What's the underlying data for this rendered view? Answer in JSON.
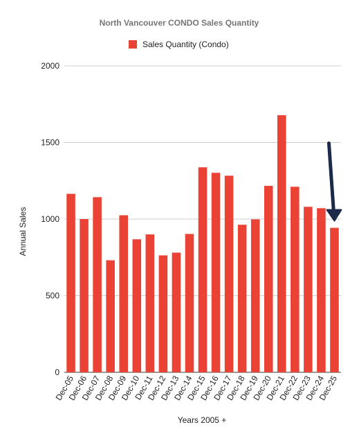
{
  "chart_data": {
    "type": "bar",
    "title": "North Vancouver CONDO Sales Quantity",
    "xlabel": "Years 2005 +",
    "ylabel": "Annual Sales",
    "categories": [
      "Dec-05",
      "Dec-06",
      "Dec-07",
      "Dec-08",
      "Dec-09",
      "Dec-10",
      "Dec-11",
      "Dec-12",
      "Dec-13",
      "Dec-14",
      "Dec-15",
      "Dec-16",
      "Dec-17",
      "Dec-18",
      "Dec-19",
      "Dec-20",
      "Dec-21",
      "Dec-22",
      "Dec-23",
      "Dec-24",
      "Dec-25"
    ],
    "series": [
      {
        "name": "Sales Quantity (Condo)",
        "color": "#ea4335",
        "values": [
          1165,
          1000,
          1143,
          731,
          1025,
          868,
          900,
          763,
          781,
          903,
          1338,
          1302,
          1283,
          963,
          998,
          1217,
          1678,
          1211,
          1080,
          1071,
          943
        ]
      }
    ],
    "ylim": [
      0,
      2000
    ],
    "yticks": [
      0,
      500,
      1000,
      1500,
      2000
    ],
    "grid": true,
    "legend_position": "top",
    "annotation": {
      "type": "arrow",
      "points_to": "Dec-25",
      "color": "#1b2a4a"
    }
  }
}
